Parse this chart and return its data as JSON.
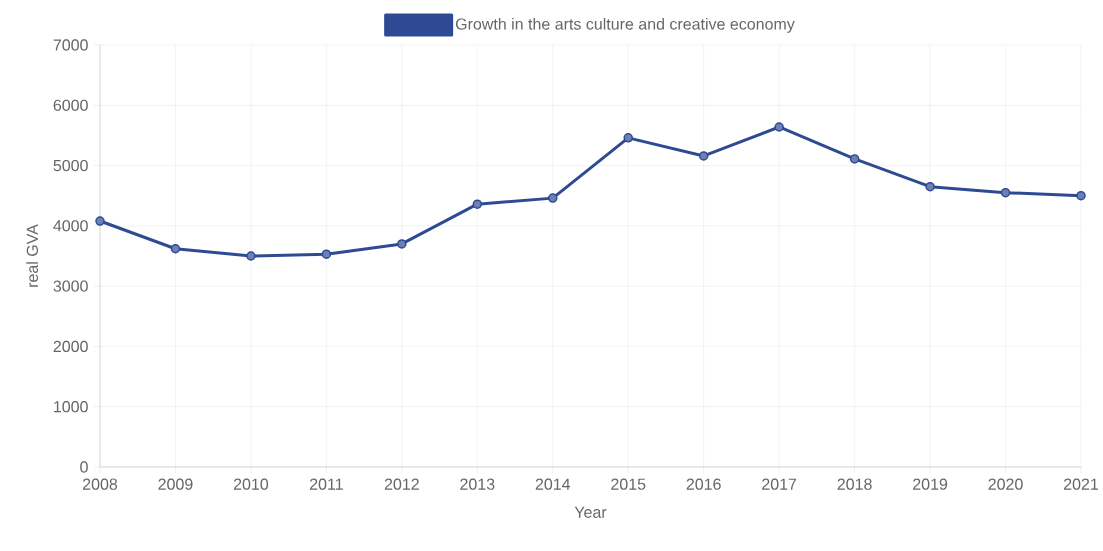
{
  "chart_data": {
    "type": "line",
    "xlabel": "Year",
    "ylabel": "real GVA",
    "categories": [
      "2008",
      "2009",
      "2010",
      "2011",
      "2012",
      "2013",
      "2014",
      "2015",
      "2016",
      "2017",
      "2018",
      "2019",
      "2020",
      "2021"
    ],
    "series": [
      {
        "name": "Growth in the arts culture and creative economy",
        "color": "#2f4a94",
        "values": [
          4080,
          3620,
          3500,
          3530,
          3700,
          4360,
          4460,
          5460,
          5160,
          5640,
          5110,
          4650,
          4550,
          4500
        ]
      }
    ],
    "ylim": [
      0,
      7000
    ],
    "yticks": [
      0,
      1000,
      2000,
      3000,
      4000,
      5000,
      6000,
      7000
    ],
    "grid": true,
    "legend": "top",
    "marker": "circle",
    "line_style": "solid"
  }
}
